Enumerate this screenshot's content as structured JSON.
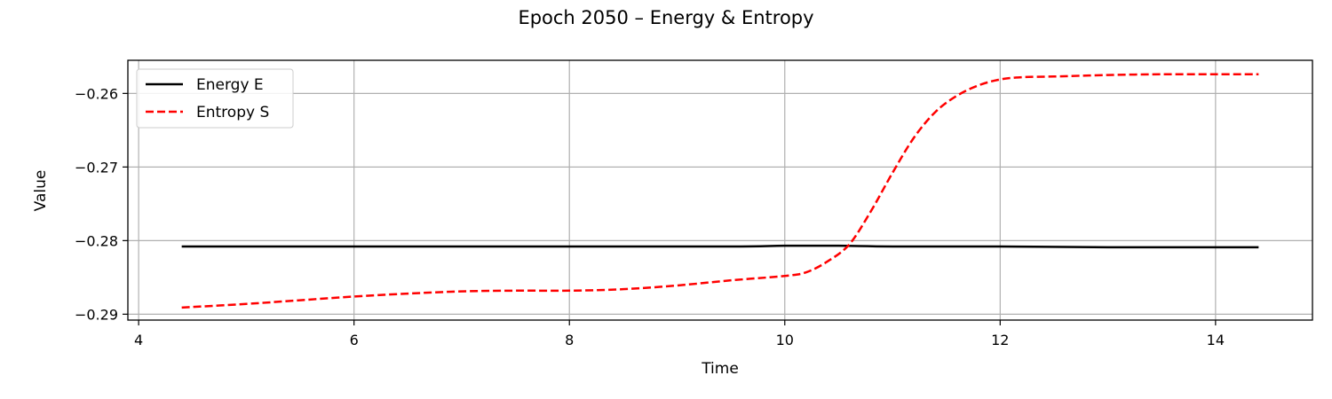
{
  "chart_data": {
    "type": "line",
    "title": "Epoch 2050 – Energy & Entropy",
    "xlabel": "Time",
    "ylabel": "Value",
    "xlim": [
      3.9,
      14.9
    ],
    "ylim": [
      -0.2908,
      -0.2555
    ],
    "xticks": [
      4,
      6,
      8,
      10,
      12,
      14
    ],
    "yticks": [
      -0.29,
      -0.28,
      -0.27,
      -0.26
    ],
    "xtick_labels": [
      "4",
      "6",
      "8",
      "10",
      "12",
      "14"
    ],
    "ytick_labels": [
      "−0.29",
      "−0.28",
      "−0.27",
      "−0.26"
    ],
    "grid": true,
    "legend_position": "upper-left",
    "series": [
      {
        "name": "Energy E",
        "color": "#000000",
        "style": "solid",
        "x": [
          4.4,
          6.0,
          8.0,
          9.5,
          10.0,
          10.5,
          11.0,
          12.0,
          13.0,
          14.4
        ],
        "y": [
          -0.2808,
          -0.2808,
          -0.2808,
          -0.2808,
          -0.2807,
          -0.2807,
          -0.2808,
          -0.2808,
          -0.2809,
          -0.2809
        ]
      },
      {
        "name": "Entropy S",
        "color": "#ff0000",
        "style": "dashed",
        "x": [
          4.4,
          5.0,
          5.5,
          6.0,
          6.5,
          7.0,
          7.5,
          8.0,
          8.5,
          9.0,
          9.5,
          10.0,
          10.2,
          10.4,
          10.6,
          10.8,
          11.0,
          11.2,
          11.4,
          11.6,
          11.8,
          12.0,
          12.2,
          12.5,
          13.0,
          13.5,
          14.0,
          14.4
        ],
        "y": [
          -0.2891,
          -0.2886,
          -0.2881,
          -0.2876,
          -0.2872,
          -0.2869,
          -0.2868,
          -0.2868,
          -0.2866,
          -0.2861,
          -0.2854,
          -0.2848,
          -0.2843,
          -0.2828,
          -0.2805,
          -0.276,
          -0.2708,
          -0.266,
          -0.2625,
          -0.2603,
          -0.2589,
          -0.2581,
          -0.2578,
          -0.2577,
          -0.2575,
          -0.2574,
          -0.2574,
          -0.2574
        ]
      }
    ]
  }
}
